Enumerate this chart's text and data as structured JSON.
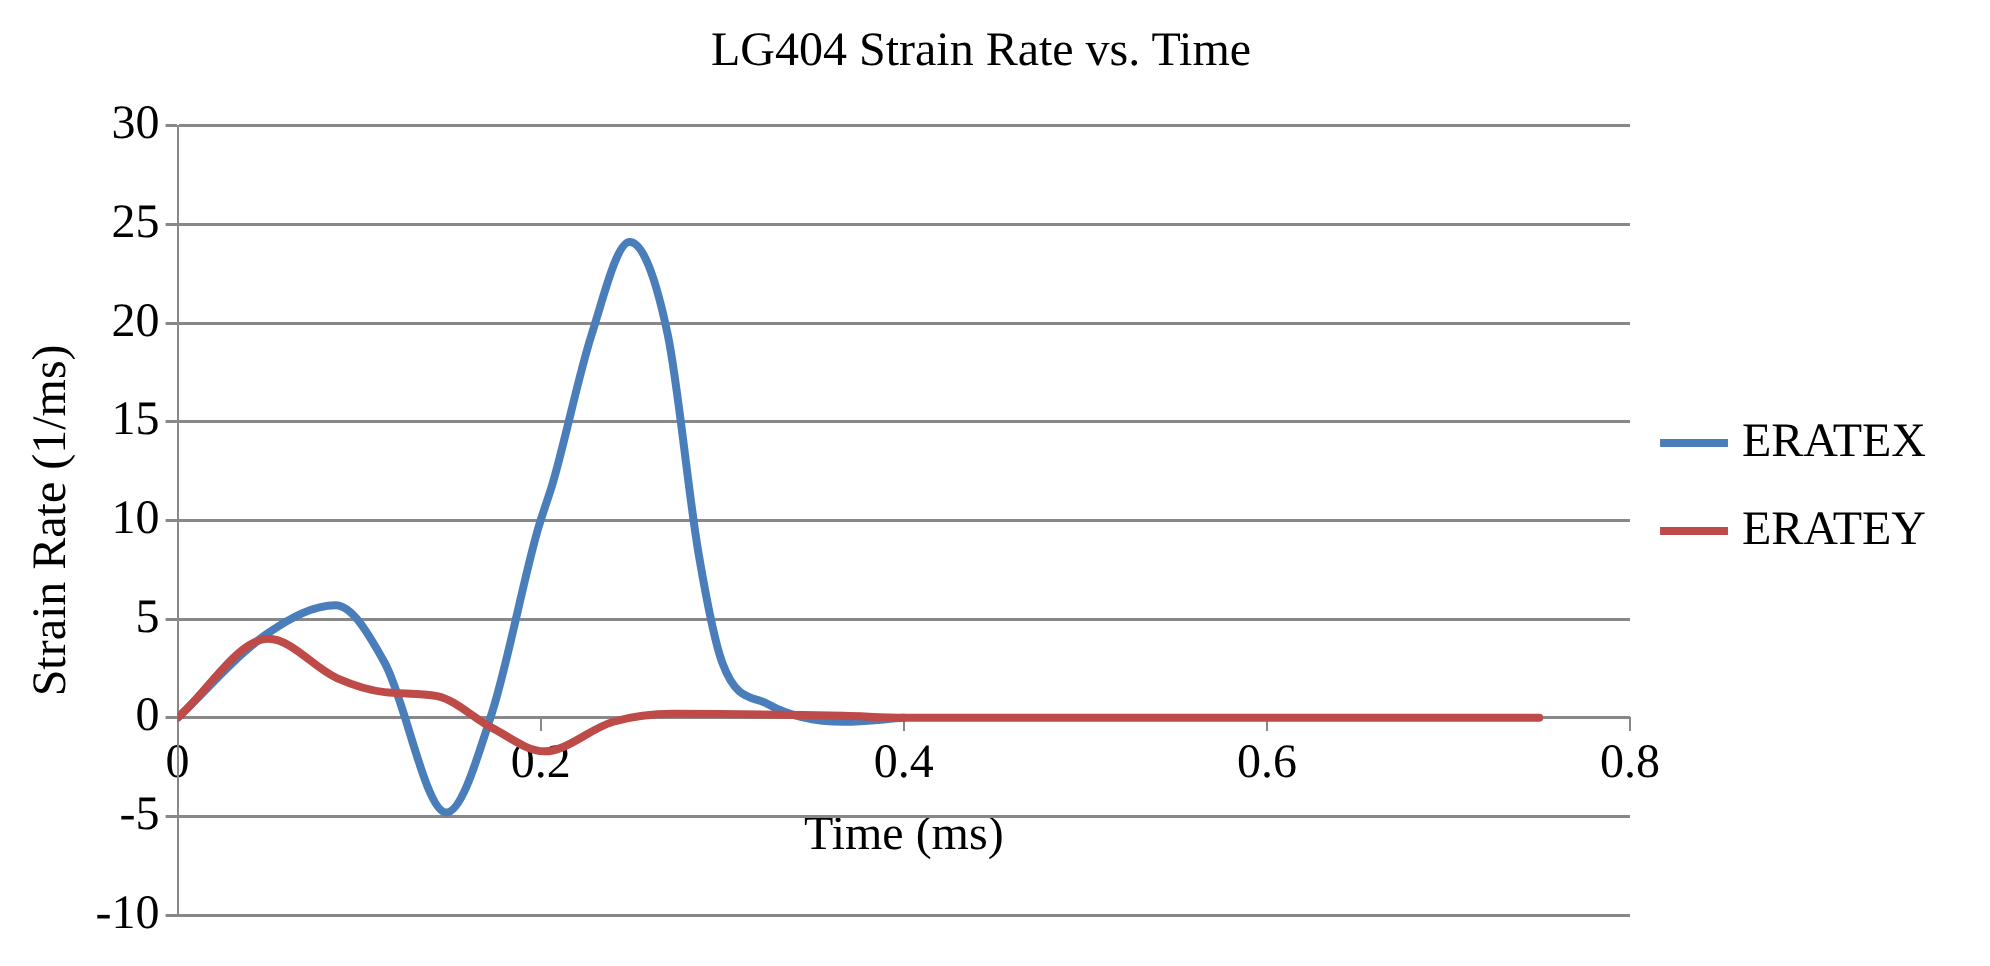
{
  "chart_data": {
    "type": "line",
    "title": "LG404 Strain Rate vs. Time",
    "xlabel": "Time (ms)",
    "ylabel": "Strain Rate (1/ms)",
    "xlim": [
      0,
      0.8
    ],
    "xticks": [
      0,
      0.2,
      0.4,
      0.6,
      0.8
    ],
    "ylim": [
      -10,
      30
    ],
    "yticks": [
      -10,
      -5,
      0,
      5,
      10,
      15,
      20,
      25,
      30
    ],
    "grid": "y",
    "legend": "right",
    "marker": "none",
    "line_style": "solid",
    "series": [
      {
        "name": "ERATEX",
        "color": "#4a7ebb",
        "x": [
          0,
          0.05,
          0.087,
          0.114,
          0.148,
          0.173,
          0.198,
          0.207,
          0.228,
          0.249,
          0.27,
          0.287,
          0.3,
          0.325,
          0.367,
          0.4
        ],
        "values": [
          0,
          4.3,
          5.7,
          2.8,
          -4.8,
          0.2,
          9.4,
          12,
          19.4,
          24.1,
          19.4,
          8.3,
          2.8,
          0.7,
          -0.2,
          0
        ]
      },
      {
        "name": "ERATEY",
        "color": "#be4b48",
        "x": [
          0,
          0.05,
          0.088,
          0.114,
          0.143,
          0.173,
          0.202,
          0.24,
          0.273,
          0.367,
          0.4,
          0.5,
          0.6,
          0.75
        ],
        "values": [
          0,
          4,
          2,
          1.3,
          1.1,
          -0.5,
          -1.7,
          -0.2,
          0.2,
          0.1,
          0,
          0,
          0,
          0
        ]
      }
    ]
  }
}
